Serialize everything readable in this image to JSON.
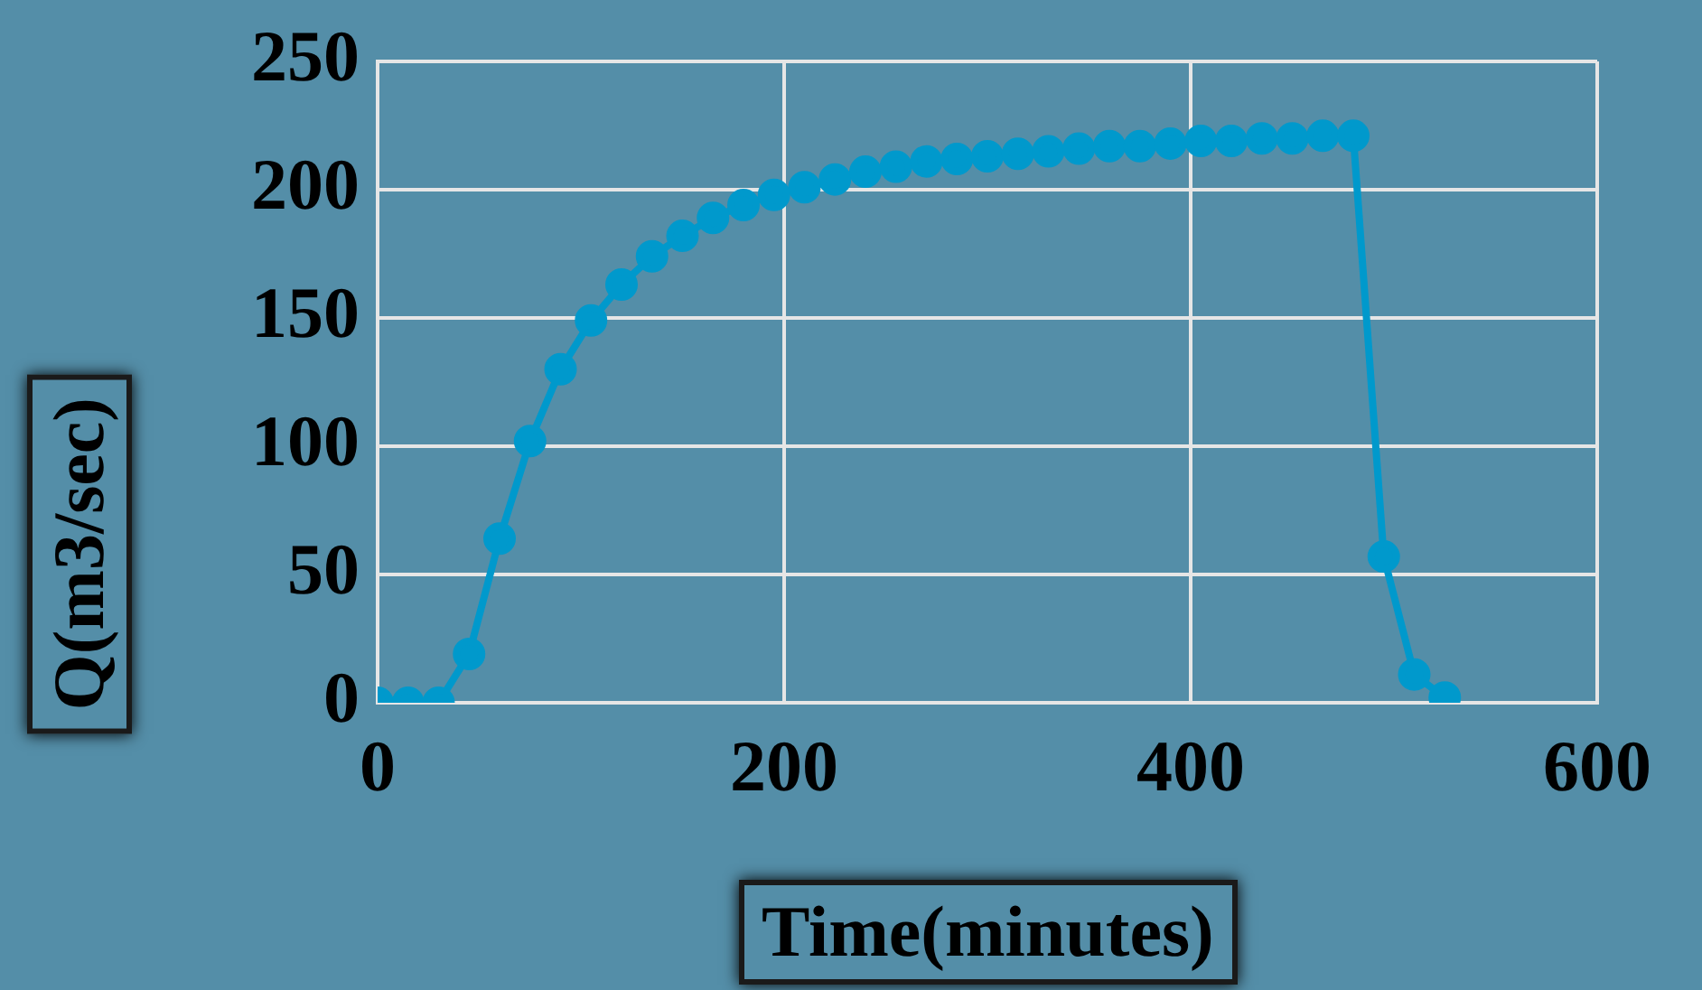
{
  "chart_data": {
    "type": "line",
    "xlabel": "Time(minutes)",
    "ylabel": "Q(m3/sec)",
    "x": [
      0,
      15,
      30,
      45,
      60,
      75,
      90,
      105,
      120,
      135,
      150,
      165,
      180,
      195,
      210,
      225,
      240,
      255,
      270,
      285,
      300,
      315,
      330,
      345,
      360,
      375,
      390,
      405,
      420,
      435,
      450,
      465,
      480,
      495,
      510,
      525
    ],
    "series": [
      {
        "color": "#0099cc",
        "values": [
          0,
          0,
          0,
          19,
          64,
          102,
          130,
          149,
          163,
          174,
          182,
          189,
          194,
          198,
          201,
          204,
          207,
          209,
          211,
          212,
          213,
          214,
          215,
          216,
          217,
          217,
          218,
          219,
          219,
          220,
          220,
          221,
          221,
          57,
          11,
          2
        ]
      }
    ],
    "xlim": [
      0,
      600
    ],
    "xticks": [
      0,
      200,
      400,
      600
    ],
    "ylim": [
      0,
      250
    ],
    "yticks": [
      0,
      50,
      100,
      150,
      200,
      250
    ],
    "grid": true,
    "legend": false,
    "marker": "circle",
    "line_style": "solid"
  }
}
